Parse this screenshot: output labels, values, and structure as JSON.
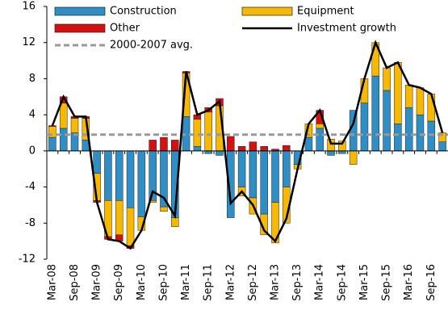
{
  "chart_data": {
    "type": "bar",
    "stacked": true,
    "categories": [
      "Mar-08",
      null,
      "Sep-08",
      null,
      "Mar-09",
      null,
      "Sep-09",
      null,
      "Mar-10",
      null,
      "Sep-10",
      null,
      "Mar-11",
      null,
      "Sep-11",
      null,
      "Mar-12",
      null,
      "Sep-12",
      null,
      "Mar-13",
      null,
      "Sep-13",
      null,
      "Mar-14",
      null,
      "Sep-14",
      null,
      "Mar-15",
      null,
      "Sep-15",
      null,
      "Mar-16",
      null,
      "Sep-16",
      null
    ],
    "series": [
      {
        "name": "Construction",
        "color": "#2f8ec4",
        "values": [
          1.5,
          2.5,
          2,
          1.2,
          -2.5,
          -5.5,
          -5.5,
          -6.3,
          -7.3,
          -5.5,
          -6.2,
          -7.4,
          3.8,
          0.5,
          -0.3,
          -0.5,
          -7.4,
          -4,
          -5.2,
          -7,
          -5.7,
          -4,
          -1.5,
          1.5,
          2.5,
          -0.5,
          -0.3,
          4.5,
          5.3,
          8.3,
          6.7,
          3,
          4.8,
          4,
          3.3,
          1
        ]
      },
      {
        "name": "Equipment",
        "color": "#f7b800",
        "values": [
          1.2,
          2.8,
          1.6,
          2.4,
          -3,
          -4,
          -3.8,
          -4.2,
          -1.5,
          -0.2,
          -0.5,
          -1,
          4.8,
          3,
          4.3,
          5,
          0,
          -1,
          -1.8,
          -2.3,
          -4.5,
          -4,
          -0.5,
          1.5,
          0.5,
          1.3,
          1.1,
          -1.5,
          2.7,
          3.7,
          2.5,
          6.8,
          2.5,
          3,
          3,
          1
        ]
      },
      {
        "name": "Other",
        "color": "#d41010",
        "values": [
          0.1,
          0.7,
          0.2,
          0.2,
          -0.2,
          -0.3,
          -0.7,
          -0.3,
          0,
          1.2,
          1.5,
          1.2,
          0.2,
          0.5,
          0.5,
          0.8,
          1.6,
          0.5,
          1,
          0.5,
          0.2,
          0.6,
          0,
          0,
          1.5,
          0,
          0,
          0,
          0,
          0,
          0,
          0,
          0,
          0,
          0,
          0
        ]
      },
      {
        "name": "Investment growth",
        "type": "line",
        "color": "#000000",
        "values": [
          2.8,
          6,
          3.8,
          3.8,
          -5.7,
          -9.8,
          -10,
          -10.8,
          -8.8,
          -4.5,
          -5.2,
          -7.2,
          8.8,
          4,
          4.5,
          5.5,
          -5.8,
          -4.5,
          -6,
          -8.8,
          -10,
          -7.5,
          -2,
          3,
          4.5,
          0.8,
          0.8,
          3,
          8,
          12,
          9.2,
          9.8,
          7.3,
          7,
          6.3,
          2
        ]
      }
    ],
    "reference_line": {
      "name": "2000-2007 avg.",
      "value": 1.8,
      "color": "#999999"
    },
    "ylim": [
      -12,
      16
    ],
    "yticks": [
      -12,
      -8,
      -4,
      0,
      4,
      8,
      12,
      16
    ]
  }
}
